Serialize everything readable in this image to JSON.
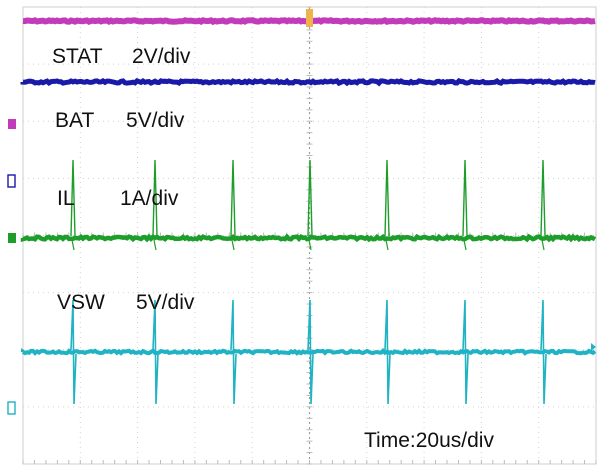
{
  "chart_data": {
    "type": "line",
    "time_scale": "Time:20us/div",
    "grid": true,
    "series": [
      {
        "name": "STAT",
        "scale": "2V/div",
        "color": "#c23bb8",
        "shape": "flat",
        "value": "high"
      },
      {
        "name": "BAT",
        "scale": "5V/div",
        "color": "#1a1aa8",
        "shape": "flat",
        "value": "constant"
      },
      {
        "name": "IL",
        "scale": "1A/div",
        "color": "#1d9e2a",
        "shape": "periodic current spikes"
      },
      {
        "name": "VSW",
        "scale": "5V/div",
        "color": "#1fb3c4",
        "shape": "periodic switching spikes"
      }
    ]
  },
  "labels": {
    "stat_name": "STAT",
    "stat_scale": "2V/div",
    "bat_name": "BAT",
    "bat_scale": "5V/div",
    "il_name": "IL",
    "il_scale": "1A/div",
    "vsw_name": "VSW",
    "vsw_scale": "5V/div",
    "time_scale": "Time:20us/div"
  }
}
